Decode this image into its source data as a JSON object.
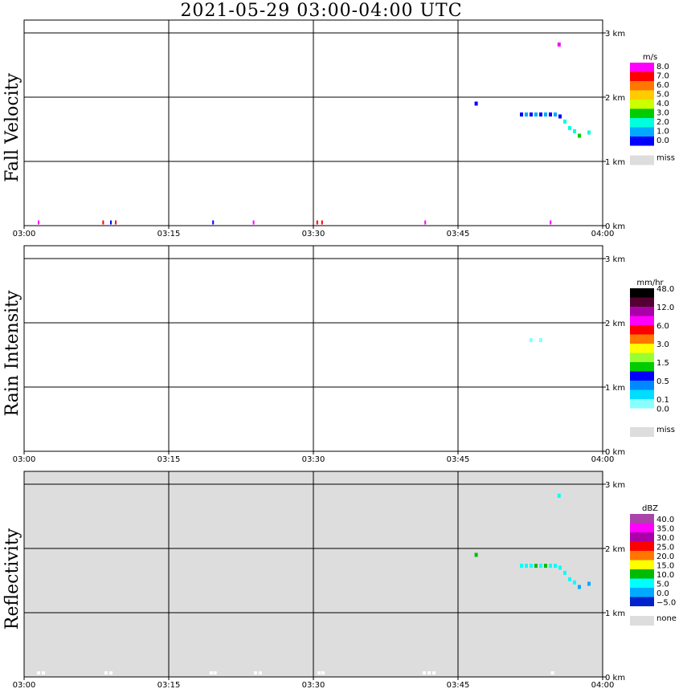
{
  "title": "2021-05-29   03:00-04:00 UTC",
  "chart_data": [
    {
      "type": "heatmap",
      "ylabel": "Fall Velocity",
      "x_ticks": [
        "03:00",
        "03:15",
        "03:30",
        "03:45",
        "04:00"
      ],
      "y_ticks": [
        "0 km",
        "1 km",
        "2 km",
        "3 km"
      ],
      "xlim_min": [
        0,
        60
      ],
      "ylim_km": [
        0,
        3.2
      ],
      "grid": true,
      "missing_fill": "#ffffff",
      "colorbar": {
        "unit": "m/s",
        "labels": [
          "8.0",
          "7.0",
          "6.0",
          "5.0",
          "4.0",
          "3.0",
          "2.0",
          "1.0",
          "0.0"
        ],
        "colors": [
          "#ff00ff",
          "#ff0000",
          "#ff7700",
          "#ffcc00",
          "#ccff00",
          "#00cc00",
          "#00ffdd",
          "#00aaff",
          "#0000ff"
        ],
        "missing_label": "miss",
        "missing_color": "#dddddd"
      },
      "cells": [
        {
          "t": 1.5,
          "z": 0.05,
          "v": 8.2
        },
        {
          "t": 8.2,
          "z": 0.05,
          "v": 7.5
        },
        {
          "t": 9.0,
          "z": 0.05,
          "v": 0.5
        },
        {
          "t": 9.5,
          "z": 0.05,
          "v": 7.5
        },
        {
          "t": 19.6,
          "z": 0.05,
          "v": 0.5
        },
        {
          "t": 23.8,
          "z": 0.05,
          "v": 8.2
        },
        {
          "t": 30.4,
          "z": 0.05,
          "v": 7.5
        },
        {
          "t": 30.9,
          "z": 0.05,
          "v": 7.5
        },
        {
          "t": 41.6,
          "z": 0.05,
          "v": 8.2
        },
        {
          "t": 54.6,
          "z": 0.05,
          "v": 8.2
        },
        {
          "t": 55.4,
          "z": 2.82,
          "v": 8.2
        },
        {
          "t": 46.8,
          "z": 1.9,
          "v": 0.5
        },
        {
          "t": 51.5,
          "z": 1.73,
          "v": 0.5
        },
        {
          "t": 52.0,
          "z": 1.73,
          "v": 1.5
        },
        {
          "t": 52.5,
          "z": 1.73,
          "v": 0.5
        },
        {
          "t": 53.0,
          "z": 1.73,
          "v": 1.5
        },
        {
          "t": 53.5,
          "z": 1.73,
          "v": 0.5
        },
        {
          "t": 54.0,
          "z": 1.73,
          "v": 1.5
        },
        {
          "t": 54.5,
          "z": 1.73,
          "v": 0.5
        },
        {
          "t": 55.0,
          "z": 1.73,
          "v": 1.5
        },
        {
          "t": 55.5,
          "z": 1.7,
          "v": 0.5
        },
        {
          "t": 56.0,
          "z": 1.62,
          "v": 2.5
        },
        {
          "t": 56.5,
          "z": 1.52,
          "v": 2.5
        },
        {
          "t": 57.0,
          "z": 1.47,
          "v": 2.5
        },
        {
          "t": 57.5,
          "z": 1.4,
          "v": 3.5
        },
        {
          "t": 58.5,
          "z": 1.45,
          "v": 2.5
        }
      ]
    },
    {
      "type": "heatmap",
      "ylabel": "Rain Intensity",
      "x_ticks": [
        "03:00",
        "03:15",
        "03:30",
        "03:45",
        "04:00"
      ],
      "y_ticks": [
        "0 km",
        "1 km",
        "2 km",
        "3 km"
      ],
      "xlim_min": [
        0,
        60
      ],
      "ylim_km": [
        0,
        3.2
      ],
      "grid": true,
      "missing_fill": "#ffffff",
      "colorbar": {
        "unit": "mm/hr",
        "labels": [
          "48.0",
          "12.0",
          "6.0",
          "3.0",
          "1.5",
          "0.5",
          "0.1",
          "0.0"
        ],
        "label_positions": [
          0,
          2,
          4,
          6,
          8,
          10,
          12,
          13
        ],
        "colors": [
          "#000000",
          "#550033",
          "#aa00aa",
          "#ff00ff",
          "#ff0000",
          "#ff7700",
          "#ffff00",
          "#99ff33",
          "#00cc00",
          "#0000ff",
          "#0088ff",
          "#00ddff",
          "#88ffff",
          "#ffffff"
        ],
        "missing_label": "miss",
        "missing_color": "#dddddd"
      },
      "cells": [
        {
          "t": 1.3,
          "z": 0.05,
          "v": 0.05
        },
        {
          "t": 1.8,
          "z": 0.05,
          "v": 0.05
        },
        {
          "t": 8.2,
          "z": 0.05,
          "v": 0.05
        },
        {
          "t": 23.8,
          "z": 0.05,
          "v": 0.05
        },
        {
          "t": 30.4,
          "z": 0.05,
          "v": 0.05
        },
        {
          "t": 46.8,
          "z": 1.9,
          "v": 0.05
        },
        {
          "t": 51.5,
          "z": 1.73,
          "v": 0.05
        },
        {
          "t": 52.0,
          "z": 1.73,
          "v": 0.05
        },
        {
          "t": 52.5,
          "z": 1.73,
          "v": 0.2
        },
        {
          "t": 53.0,
          "z": 1.73,
          "v": 0.05
        },
        {
          "t": 53.5,
          "z": 1.73,
          "v": 0.2
        },
        {
          "t": 54.0,
          "z": 1.73,
          "v": 0.05
        },
        {
          "t": 54.5,
          "z": 1.73,
          "v": 0.05
        },
        {
          "t": 55.0,
          "z": 1.73,
          "v": 0.05
        },
        {
          "t": 55.5,
          "z": 1.7,
          "v": 0.05
        },
        {
          "t": 56.0,
          "z": 1.62,
          "v": 0.05
        },
        {
          "t": 56.5,
          "z": 1.52,
          "v": 0.05
        },
        {
          "t": 57.0,
          "z": 1.47,
          "v": 0.05
        },
        {
          "t": 58.5,
          "z": 1.45,
          "v": 0.05
        }
      ]
    },
    {
      "type": "heatmap",
      "ylabel": "Reflectivity",
      "x_ticks": [
        "03:00",
        "03:15",
        "03:30",
        "03:45",
        "04:00"
      ],
      "y_ticks": [
        "0 km",
        "1 km",
        "2 km",
        "3 km"
      ],
      "xlim_min": [
        0,
        60
      ],
      "ylim_km": [
        0,
        3.2
      ],
      "grid": true,
      "missing_fill": "#dddddd",
      "colorbar": {
        "unit": "dBZ",
        "labels": [
          "40.0",
          "35.0",
          "30.0",
          "25.0",
          "20.0",
          "15.0",
          "10.0",
          "5.0",
          "0.0",
          "−5.0"
        ],
        "label_positions": [
          0.5,
          1.5,
          2.5,
          3.5,
          4.5,
          5.5,
          6.5,
          7.5,
          8.5,
          9.5
        ],
        "colors": [
          "#aa44aa",
          "#ff00ff",
          "#aa00aa",
          "#ff0000",
          "#ff7700",
          "#ffff00",
          "#00bb00",
          "#00ffff",
          "#00aaff",
          "#0022cc"
        ],
        "missing_label": "none",
        "missing_color": "#dddddd"
      },
      "cells": [
        {
          "t": 55.4,
          "z": 2.82,
          "v": 2
        },
        {
          "t": 46.8,
          "z": 1.9,
          "v": 8
        },
        {
          "t": 51.5,
          "z": 1.73,
          "v": 5
        },
        {
          "t": 52.0,
          "z": 1.73,
          "v": 5
        },
        {
          "t": 52.5,
          "z": 1.73,
          "v": 2
        },
        {
          "t": 53.0,
          "z": 1.73,
          "v": 8
        },
        {
          "t": 53.5,
          "z": 1.73,
          "v": 2
        },
        {
          "t": 54.0,
          "z": 1.73,
          "v": 8
        },
        {
          "t": 54.5,
          "z": 1.73,
          "v": 2
        },
        {
          "t": 55.0,
          "z": 1.73,
          "v": 5
        },
        {
          "t": 55.5,
          "z": 1.7,
          "v": 5
        },
        {
          "t": 56.0,
          "z": 1.62,
          "v": 2
        },
        {
          "t": 56.5,
          "z": 1.52,
          "v": 5
        },
        {
          "t": 57.0,
          "z": 1.47,
          "v": 5
        },
        {
          "t": 57.5,
          "z": 1.4,
          "v": -2
        },
        {
          "t": 58.5,
          "z": 1.45,
          "v": -2
        }
      ],
      "no_echo_cells": [
        {
          "t": 1.5,
          "z": 0.05
        },
        {
          "t": 2.0,
          "z": 0.05
        },
        {
          "t": 8.5,
          "z": 0.05
        },
        {
          "t": 9.0,
          "z": 0.05
        },
        {
          "t": 19.4,
          "z": 0.05
        },
        {
          "t": 19.8,
          "z": 0.05
        },
        {
          "t": 24.0,
          "z": 0.05
        },
        {
          "t": 24.5,
          "z": 0.05
        },
        {
          "t": 30.6,
          "z": 0.05
        },
        {
          "t": 31.0,
          "z": 0.05
        },
        {
          "t": 41.5,
          "z": 0.05
        },
        {
          "t": 42.0,
          "z": 0.05
        },
        {
          "t": 42.5,
          "z": 0.05
        },
        {
          "t": 54.8,
          "z": 0.05
        }
      ]
    }
  ]
}
